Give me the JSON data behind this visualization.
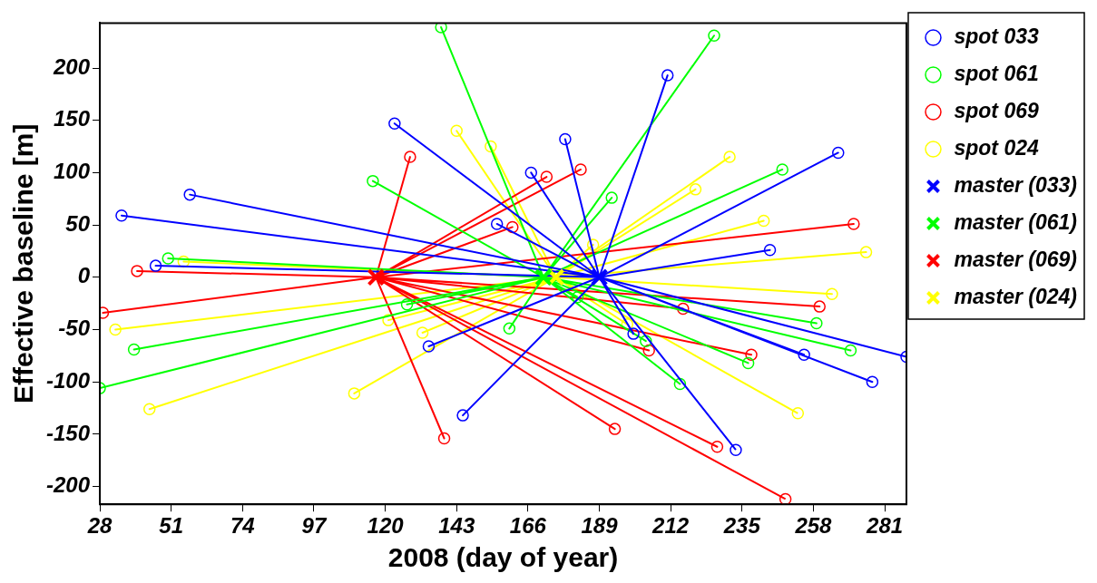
{
  "chart_data": {
    "type": "line",
    "xlabel": "2008 (day of year)",
    "ylabel": "Effective baseline [m]",
    "xlim": [
      28,
      288
    ],
    "xticks": [
      28,
      51,
      74,
      97,
      120,
      143,
      166,
      189,
      212,
      235,
      258,
      281
    ],
    "ylim": [
      -217,
      243
    ],
    "yticks": [
      -200,
      -150,
      -100,
      -50,
      0,
      50,
      100,
      150,
      200
    ],
    "grid": false,
    "legend": "right",
    "marker": "circle",
    "line_style": "solid",
    "series": [
      {
        "name": "spot 033",
        "color": "#0000ff",
        "x": [
          189,
          123,
          189,
          57,
          189,
          35,
          189,
          46,
          189,
          211,
          189,
          178,
          189,
          266,
          189,
          167,
          189,
          156,
          189,
          244,
          189,
          134,
          189,
          145,
          189,
          200,
          189,
          255,
          189,
          288,
          189,
          277,
          189,
          233
        ],
        "values": [
          0,
          147,
          0,
          79,
          0,
          59,
          0,
          11,
          0,
          193,
          0,
          132,
          0,
          119,
          0,
          100,
          0,
          51,
          0,
          26,
          0,
          -66,
          0,
          -132,
          0,
          -54,
          0,
          -74,
          0,
          -76,
          0,
          -100,
          0,
          -165
        ]
      },
      {
        "name": "spot 061",
        "color": "#00ff00",
        "x": [
          171,
          138,
          171,
          116,
          171,
          50,
          171,
          226,
          171,
          248,
          171,
          193,
          171,
          39,
          171,
          28,
          171,
          127,
          171,
          259,
          171,
          160,
          171,
          204,
          171,
          270,
          171,
          237,
          171,
          215,
          171,
          182
        ],
        "values": [
          0,
          239,
          0,
          92,
          0,
          18,
          0,
          231,
          0,
          103,
          0,
          76,
          0,
          -69,
          0,
          -106,
          0,
          -26,
          0,
          -44,
          0,
          -49,
          0,
          -61,
          0,
          -70,
          0,
          -82,
          0,
          -102,
          0,
          -19
        ]
      },
      {
        "name": "spot 069",
        "color": "#ff0000",
        "x": [
          117,
          128,
          117,
          40,
          117,
          172,
          117,
          183,
          117,
          271,
          117,
          161,
          117,
          29,
          117,
          139,
          117,
          260,
          117,
          216,
          117,
          205,
          117,
          238,
          117,
          194,
          117,
          227,
          117,
          249
        ],
        "values": [
          0,
          115,
          0,
          6,
          0,
          96,
          0,
          103,
          0,
          51,
          0,
          48,
          0,
          -34,
          0,
          -154,
          0,
          -28,
          0,
          -30,
          0,
          -70,
          0,
          -74,
          0,
          -145,
          0,
          -162,
          0,
          -212
        ]
      },
      {
        "name": "spot 024",
        "color": "#ffff00",
        "x": [
          175,
          143,
          175,
          154,
          175,
          55,
          175,
          231,
          175,
          220,
          175,
          242,
          175,
          187,
          175,
          275,
          175,
          33,
          175,
          44,
          175,
          121,
          175,
          132,
          175,
          110,
          175,
          264,
          175,
          198,
          175,
          253
        ],
        "values": [
          0,
          140,
          0,
          125,
          0,
          15,
          0,
          115,
          0,
          84,
          0,
          54,
          0,
          31,
          0,
          24,
          0,
          -50,
          0,
          -126,
          0,
          -41,
          0,
          -53,
          0,
          -111,
          0,
          -16,
          0,
          -45,
          0,
          -130
        ]
      },
      {
        "name": "master (033)",
        "type": "scatter",
        "marker": "cross",
        "color": "#0000ff",
        "x": [
          189
        ],
        "values": [
          0
        ]
      },
      {
        "name": "master (061)",
        "type": "scatter",
        "marker": "cross",
        "color": "#00ff00",
        "x": [
          171
        ],
        "values": [
          0
        ]
      },
      {
        "name": "master (069)",
        "type": "scatter",
        "marker": "cross",
        "color": "#ff0000",
        "x": [
          117
        ],
        "values": [
          0
        ]
      },
      {
        "name": "master (024)",
        "type": "scatter",
        "marker": "cross",
        "color": "#ffff00",
        "x": [
          175
        ],
        "values": [
          0
        ]
      }
    ]
  }
}
